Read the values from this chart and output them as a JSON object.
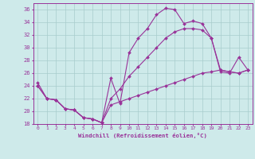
{
  "xlabel": "Windchill (Refroidissement éolien,°C)",
  "background_color": "#ceeaea",
  "grid_color": "#a8cccc",
  "line_color": "#993399",
  "xlim": [
    -0.5,
    23.5
  ],
  "ylim": [
    18,
    37
  ],
  "xticks": [
    0,
    1,
    2,
    3,
    4,
    5,
    6,
    7,
    8,
    9,
    10,
    11,
    12,
    13,
    14,
    15,
    16,
    17,
    18,
    19,
    20,
    21,
    22,
    23
  ],
  "yticks": [
    18,
    20,
    22,
    24,
    26,
    28,
    30,
    32,
    34,
    36
  ],
  "line1_x": [
    0,
    1,
    2,
    3,
    4,
    5,
    6,
    7,
    8,
    9,
    10,
    11,
    12,
    13,
    14,
    15,
    16,
    17,
    18,
    19,
    20,
    21,
    22,
    23
  ],
  "line1_y": [
    24.5,
    22.0,
    21.8,
    20.4,
    20.2,
    19.0,
    18.8,
    18.2,
    25.2,
    21.2,
    29.2,
    31.5,
    33.0,
    35.2,
    36.2,
    36.0,
    33.8,
    34.2,
    33.8,
    31.5,
    26.2,
    26.0,
    28.5,
    26.5
  ],
  "line2_x": [
    0,
    1,
    2,
    3,
    4,
    5,
    6,
    7,
    8,
    9,
    10,
    11,
    12,
    13,
    14,
    15,
    16,
    17,
    18,
    19,
    20,
    21,
    22,
    23
  ],
  "line2_y": [
    24.0,
    22.0,
    21.8,
    20.4,
    20.2,
    19.0,
    18.8,
    18.2,
    22.0,
    23.5,
    25.5,
    27.0,
    28.5,
    30.0,
    31.5,
    32.5,
    33.0,
    33.0,
    32.8,
    31.5,
    26.5,
    26.2,
    26.0,
    26.5
  ],
  "line3_x": [
    0,
    1,
    2,
    3,
    4,
    5,
    6,
    7,
    8,
    9,
    10,
    11,
    12,
    13,
    14,
    15,
    16,
    17,
    18,
    19,
    20,
    21,
    22,
    23
  ],
  "line3_y": [
    24.0,
    22.0,
    21.8,
    20.4,
    20.2,
    19.0,
    18.8,
    18.2,
    21.0,
    21.5,
    22.0,
    22.5,
    23.0,
    23.5,
    24.0,
    24.5,
    25.0,
    25.5,
    26.0,
    26.2,
    26.5,
    26.2,
    26.0,
    26.5
  ]
}
